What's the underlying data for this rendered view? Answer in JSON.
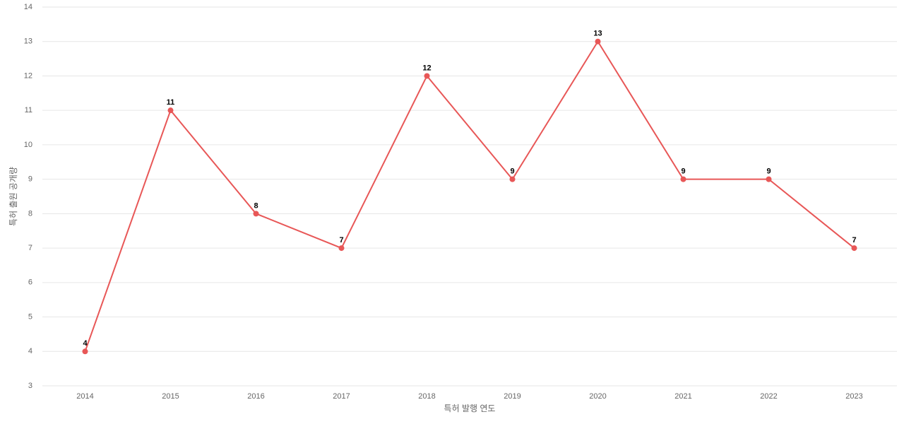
{
  "chart_data": {
    "type": "line",
    "x_label": "특허 발행 연도",
    "y_label": "특허 출원 공개량",
    "categories": [
      "2014",
      "2015",
      "2016",
      "2017",
      "2018",
      "2019",
      "2020",
      "2021",
      "2022",
      "2023"
    ],
    "values": [
      4,
      11,
      8,
      7,
      12,
      9,
      13,
      9,
      9,
      7
    ],
    "color": "#e85757",
    "ylim": [
      3,
      14
    ],
    "yticks": [
      3,
      4,
      5,
      6,
      7,
      8,
      9,
      10,
      11,
      12,
      13,
      14
    ],
    "grid": true
  }
}
